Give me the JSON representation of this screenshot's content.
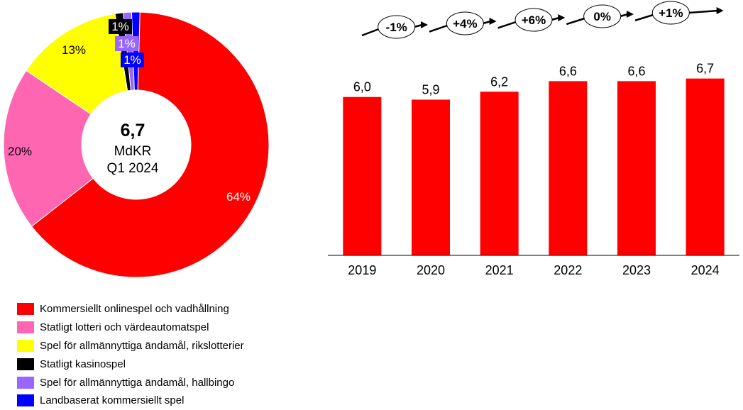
{
  "chart_data": [
    {
      "type": "pie",
      "subtype": "donut",
      "center_label": {
        "value": "6,7",
        "unit": "MdKR",
        "period": "Q1 2024"
      },
      "slices": [
        {
          "name": "Kommersiellt onlinespel och vadhållning",
          "value": 64,
          "label": "64%",
          "color": "#FF0000"
        },
        {
          "name": "Statligt lotteri och värdeautomatspel",
          "value": 20,
          "label": "20%",
          "color": "#FF66B2"
        },
        {
          "name": "Spel för allmännyttiga ändamål, rikslotterier",
          "value": 13,
          "label": "13%",
          "color": "#FFFF00"
        },
        {
          "name": "Statligt kasinospel",
          "value": 1,
          "label": "1%",
          "color": "#000000"
        },
        {
          "name": "Spel för allmännyttiga ändamål, hallbingo",
          "value": 1,
          "label": "1%",
          "color": "#9966FF"
        },
        {
          "name": "Landbaserat kommersiellt spel",
          "value": 1,
          "label": "1%",
          "color": "#0000FF"
        }
      ]
    },
    {
      "type": "bar",
      "categories": [
        "2019",
        "2020",
        "2021",
        "2022",
        "2023",
        "2024"
      ],
      "values": [
        6.0,
        5.9,
        6.2,
        6.6,
        6.6,
        6.7
      ],
      "value_labels": [
        "6,0",
        "5,9",
        "6,2",
        "6,6",
        "6,6",
        "6,7"
      ],
      "growth_labels": [
        "-1%",
        "+4%",
        "+6%",
        "0%",
        "+1%"
      ],
      "bar_color": "#FF0000",
      "title": "",
      "xlabel": "",
      "ylabel": ""
    }
  ]
}
